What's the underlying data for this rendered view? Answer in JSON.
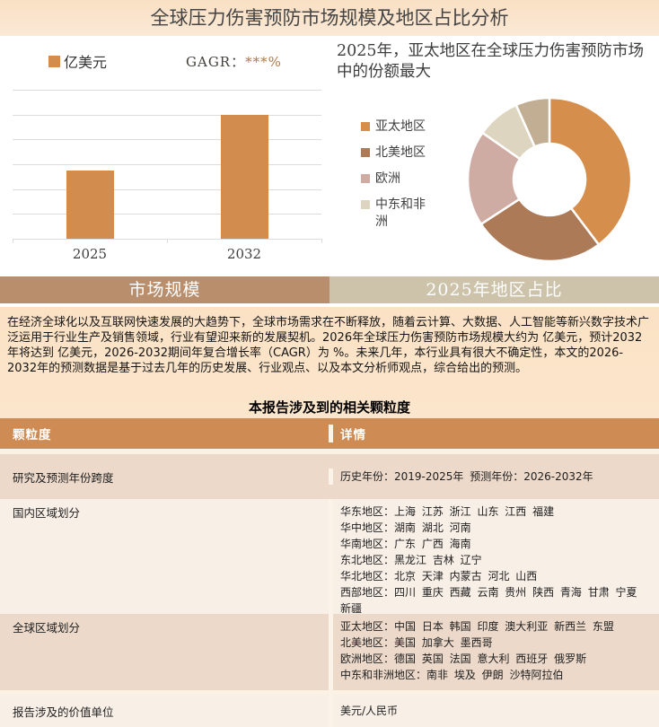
{
  "page": {
    "title": "全球压力伤害预防市场规模及地区占比分析"
  },
  "bar_chart": {
    "legend_label": "亿美元",
    "cagr_label": "GAGR：",
    "cagr_value": "***%"
  },
  "pie_chart": {
    "title": "2025年，亚太地区在全球压力伤害预防市场中的份额最大"
  },
  "tabs": [
    {
      "label": "市场规模"
    },
    {
      "label": "2025年地区占比"
    }
  ],
  "summary": {
    "text": "在经济全球化以及互联网快速发展的大趋势下，全球市场需求在不断释放，随着云计算、大数据、人工智能等新兴数字技术广泛运用于行业生产及销售领域，行业有望迎来新的发展契机。2026年全球压力伤害预防市场规模大约为 亿美元，预计2032年将达到 亿美元，2026-2032期间年复合增长率（CAGR）为 %。未来几年，本行业具有很大不确定性，本文的2026-2032年的预测数据是基于过去几年的历史发展、行业观点、以及本文分析师观点，综合给出的预测。"
  },
  "table": {
    "title": "本报告涉及到的相关颗粒度",
    "headers": [
      "颗粒度",
      "详情"
    ],
    "rows": [
      {
        "granularity": "研究及预测年份跨度",
        "details": [
          "历史年份：2019-2025年 预测年份：2026-2032年"
        ]
      },
      {
        "granularity": "国内区域划分",
        "details": [
          "华东地区：上海 江苏 浙江 山东 江西 福建",
          "华中地区：湖南 湖北 河南",
          "华南地区：广东 广西 海南",
          "东北地区：黑龙江 吉林 辽宁",
          "华北地区：北京 天津 内蒙古 河北 山西",
          "西部地区：四川 重庆 西藏 云南 贵州 陕西 青海 甘肃 宁夏 新疆"
        ]
      },
      {
        "granularity": "全球区域划分",
        "details": [
          "亚太地区：中国 日本 韩国 印度 澳大利亚 新西兰 东盟",
          "北美地区：美国 加拿大 墨西哥",
          "欧洲地区：德国 英国 法国 意大利 西班牙 俄罗斯",
          "中东和非洲地区：南非 埃及 伊朗 沙特阿拉伯"
        ]
      },
      {
        "granularity": "报告涉及的价值单位",
        "details": [
          "美元/人民币"
        ]
      }
    ]
  },
  "colors": {
    "accent_orange": "#D28C4E",
    "tab_left_bg": "#B98E6C",
    "tab_right_bg": "#CCC3AA",
    "table_header_bg": "#CE8B53",
    "table_row_pink": "#ECD9CA",
    "table_row_light": "#F8EFE7",
    "banner_bg": "#FAE5CE",
    "section_bg": "#FBE2C5",
    "gridline": "#DCDCDC"
  },
  "chart_data": [
    {
      "type": "bar",
      "title": "市场规模",
      "categories": [
        "2025",
        "2032"
      ],
      "series": [
        {
          "name": "亿美元",
          "values": [
            46,
            83
          ]
        }
      ],
      "values_masked": true,
      "annotation": "GAGR：***%",
      "xlabel": "",
      "ylabel": "亿美元",
      "ylim": [
        0,
        100
      ],
      "grid": true,
      "gridline_count": 7,
      "bar_color": "#D28C4E",
      "legend_position": "top"
    },
    {
      "type": "pie",
      "donut": true,
      "title": "2025年，亚太地区在全球压力伤害预防市场中的份额最大",
      "labels": [
        "亚太地区",
        "北美地区",
        "欧洲",
        "中东和非洲",
        ""
      ],
      "values": [
        39.7,
        26.1,
        18.9,
        8.6,
        6.7
      ],
      "colors": [
        "#D68E4C",
        "#AC7A57",
        "#CFACA3",
        "#DDD5BF",
        "#C1AE93"
      ],
      "legend_position": "left",
      "values_masked": true
    }
  ]
}
